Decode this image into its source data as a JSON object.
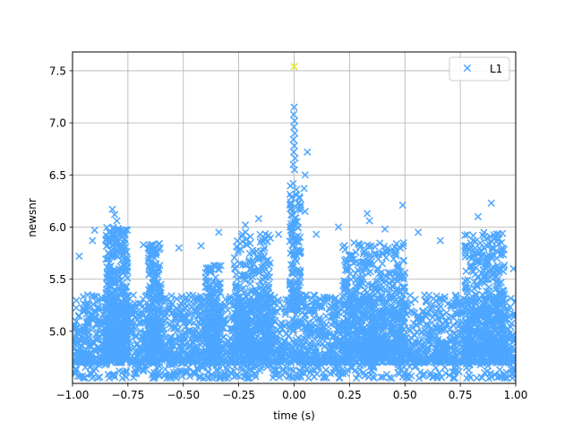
{
  "chart_data": {
    "type": "scatter",
    "xlabel": "time (s)",
    "ylabel": "newsnr",
    "xlim": [
      -1.0,
      1.0
    ],
    "ylim": [
      4.5,
      7.68
    ],
    "grid": true,
    "legend_position": "upper-right",
    "x_ticks": [
      {
        "value": -1.0,
        "label": "−1.00"
      },
      {
        "value": -0.75,
        "label": "−0.75"
      },
      {
        "value": -0.5,
        "label": "−0.50"
      },
      {
        "value": -0.25,
        "label": "−0.25"
      },
      {
        "value": 0.0,
        "label": "0.00"
      },
      {
        "value": 0.25,
        "label": "0.25"
      },
      {
        "value": 0.5,
        "label": "0.50"
      },
      {
        "value": 0.75,
        "label": "0.75"
      },
      {
        "value": 1.0,
        "label": "1.00"
      }
    ],
    "y_ticks": [
      {
        "value": 5.0,
        "label": "5.0"
      },
      {
        "value": 5.5,
        "label": "5.5"
      },
      {
        "value": 6.0,
        "label": "6.0"
      },
      {
        "value": 6.5,
        "label": "6.5"
      },
      {
        "value": 7.0,
        "label": "7.0"
      },
      {
        "value": 7.5,
        "label": "7.5"
      }
    ],
    "series": [
      {
        "name": "L1",
        "color": "#4da6ff",
        "marker": "x",
        "bands": [
          {
            "x0": -1.0,
            "x1": 1.0,
            "ymin": 4.7,
            "ymax": 5.35,
            "n": 2600
          },
          {
            "x0": -0.85,
            "x1": -0.75,
            "ymin": 4.8,
            "ymax": 6.0,
            "n": 450
          },
          {
            "x0": -0.66,
            "x1": -0.6,
            "ymin": 4.8,
            "ymax": 5.85,
            "n": 220
          },
          {
            "x0": -0.27,
            "x1": -0.1,
            "ymin": 4.8,
            "ymax": 5.95,
            "n": 400
          },
          {
            "x0": -0.4,
            "x1": -0.33,
            "ymin": 4.8,
            "ymax": 5.65,
            "n": 160
          },
          {
            "x0": 0.22,
            "x1": 0.5,
            "ymin": 4.8,
            "ymax": 5.85,
            "n": 500
          },
          {
            "x0": 0.77,
            "x1": 0.95,
            "ymin": 4.8,
            "ymax": 5.95,
            "n": 400
          },
          {
            "x0": -0.02,
            "x1": 0.03,
            "ymin": 5.2,
            "ymax": 6.5,
            "n": 140
          },
          {
            "x0": -1.0,
            "x1": 1.0,
            "ymin": 4.55,
            "ymax": 4.8,
            "n": 500
          }
        ],
        "points": [
          {
            "x": 0.0,
            "y": 7.54
          },
          {
            "x": 0.0,
            "y": 7.15
          },
          {
            "x": -0.002,
            "y": 7.08
          },
          {
            "x": 0.002,
            "y": 7.02
          },
          {
            "x": -0.001,
            "y": 6.96
          },
          {
            "x": 0.003,
            "y": 6.9
          },
          {
            "x": -0.003,
            "y": 6.84
          },
          {
            "x": 0.001,
            "y": 6.78
          },
          {
            "x": -0.002,
            "y": 6.72
          },
          {
            "x": 0.004,
            "y": 6.66
          },
          {
            "x": -0.004,
            "y": 6.6
          },
          {
            "x": 0.002,
            "y": 6.55
          },
          {
            "x": 0.05,
            "y": 6.5
          },
          {
            "x": 0.045,
            "y": 6.37
          },
          {
            "x": 0.06,
            "y": 6.72
          },
          {
            "x": 0.05,
            "y": 6.15
          },
          {
            "x": -0.82,
            "y": 6.17
          },
          {
            "x": -0.81,
            "y": 6.12
          },
          {
            "x": -0.8,
            "y": 6.06
          },
          {
            "x": -0.9,
            "y": 5.97
          },
          {
            "x": -0.91,
            "y": 5.87
          },
          {
            "x": 0.33,
            "y": 6.13
          },
          {
            "x": 0.34,
            "y": 6.06
          },
          {
            "x": 0.49,
            "y": 6.21
          },
          {
            "x": 0.89,
            "y": 6.23
          },
          {
            "x": 0.83,
            "y": 6.1
          },
          {
            "x": -0.16,
            "y": 6.08
          },
          {
            "x": -0.22,
            "y": 6.02
          },
          {
            "x": -0.34,
            "y": 5.95
          },
          {
            "x": -0.52,
            "y": 5.8
          },
          {
            "x": -0.42,
            "y": 5.82
          },
          {
            "x": -0.68,
            "y": 5.83
          },
          {
            "x": -0.63,
            "y": 5.78
          },
          {
            "x": 0.2,
            "y": 6.0
          },
          {
            "x": 0.56,
            "y": 5.95
          },
          {
            "x": 0.66,
            "y": 5.87
          },
          {
            "x": 0.41,
            "y": 5.98
          },
          {
            "x": 0.1,
            "y": 5.93
          },
          {
            "x": -0.07,
            "y": 5.93
          },
          {
            "x": -0.12,
            "y": 5.86
          },
          {
            "x": -0.97,
            "y": 5.72
          },
          {
            "x": 0.99,
            "y": 5.6
          },
          {
            "x": 0.77,
            "y": 5.82
          },
          {
            "x": -0.09,
            "y": 4.63
          },
          {
            "x": -0.17,
            "y": 4.66
          },
          {
            "x": 0.05,
            "y": 4.72
          },
          {
            "x": 0.08,
            "y": 4.7
          }
        ],
        "highlight": {
          "x": 0.0,
          "y": 7.54,
          "color": "#f2f21d"
        }
      }
    ]
  }
}
